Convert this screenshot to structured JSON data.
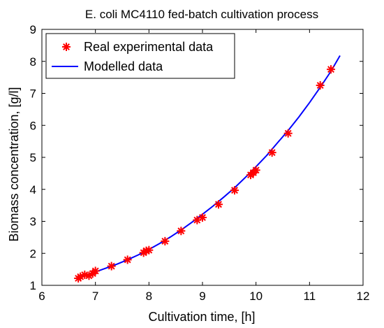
{
  "chart_data": {
    "type": "scatter",
    "title": "E. coli MC4110 fed-batch cultivation process",
    "xlabel": "Cultivation time, [h]",
    "ylabel": "Biomass concentration, [g/l]",
    "xlim": [
      6,
      12
    ],
    "ylim": [
      1,
      9
    ],
    "xticks": [
      6,
      7,
      8,
      9,
      10,
      11,
      12
    ],
    "yticks": [
      1,
      2,
      3,
      4,
      5,
      6,
      7,
      8,
      9
    ],
    "grid": true,
    "legend_position": "top-left",
    "series": [
      {
        "name": "Real experimental data",
        "kind": "markers",
        "marker": "asterisk",
        "color": "#ff0000",
        "x": [
          6.68,
          6.72,
          6.8,
          6.88,
          6.95,
          7.0,
          7.3,
          7.6,
          7.9,
          7.95,
          8.0,
          8.3,
          8.6,
          8.9,
          9.0,
          9.3,
          9.6,
          9.9,
          9.95,
          10.0,
          10.3,
          10.6,
          11.2,
          11.4
        ],
        "y": [
          1.22,
          1.27,
          1.33,
          1.3,
          1.37,
          1.45,
          1.6,
          1.8,
          2.02,
          2.08,
          2.1,
          2.38,
          2.7,
          3.04,
          3.12,
          3.53,
          3.97,
          4.45,
          4.52,
          4.6,
          5.15,
          5.75,
          7.25,
          7.75
        ]
      },
      {
        "name": "Modelled data",
        "kind": "line",
        "color": "#0000ff",
        "x": [
          6.65,
          6.8,
          7.0,
          7.2,
          7.4,
          7.6,
          7.8,
          8.0,
          8.2,
          8.4,
          8.6,
          8.8,
          9.0,
          9.2,
          9.4,
          9.6,
          9.8,
          10.0,
          10.2,
          10.4,
          10.6,
          10.8,
          11.0,
          11.2,
          11.4,
          11.57
        ],
        "y": [
          1.22,
          1.31,
          1.42,
          1.54,
          1.66,
          1.8,
          1.95,
          2.12,
          2.31,
          2.51,
          2.73,
          2.97,
          3.22,
          3.48,
          3.76,
          4.05,
          4.37,
          4.71,
          5.06,
          5.45,
          5.84,
          6.26,
          6.71,
          7.19,
          7.69,
          8.18
        ]
      }
    ]
  }
}
